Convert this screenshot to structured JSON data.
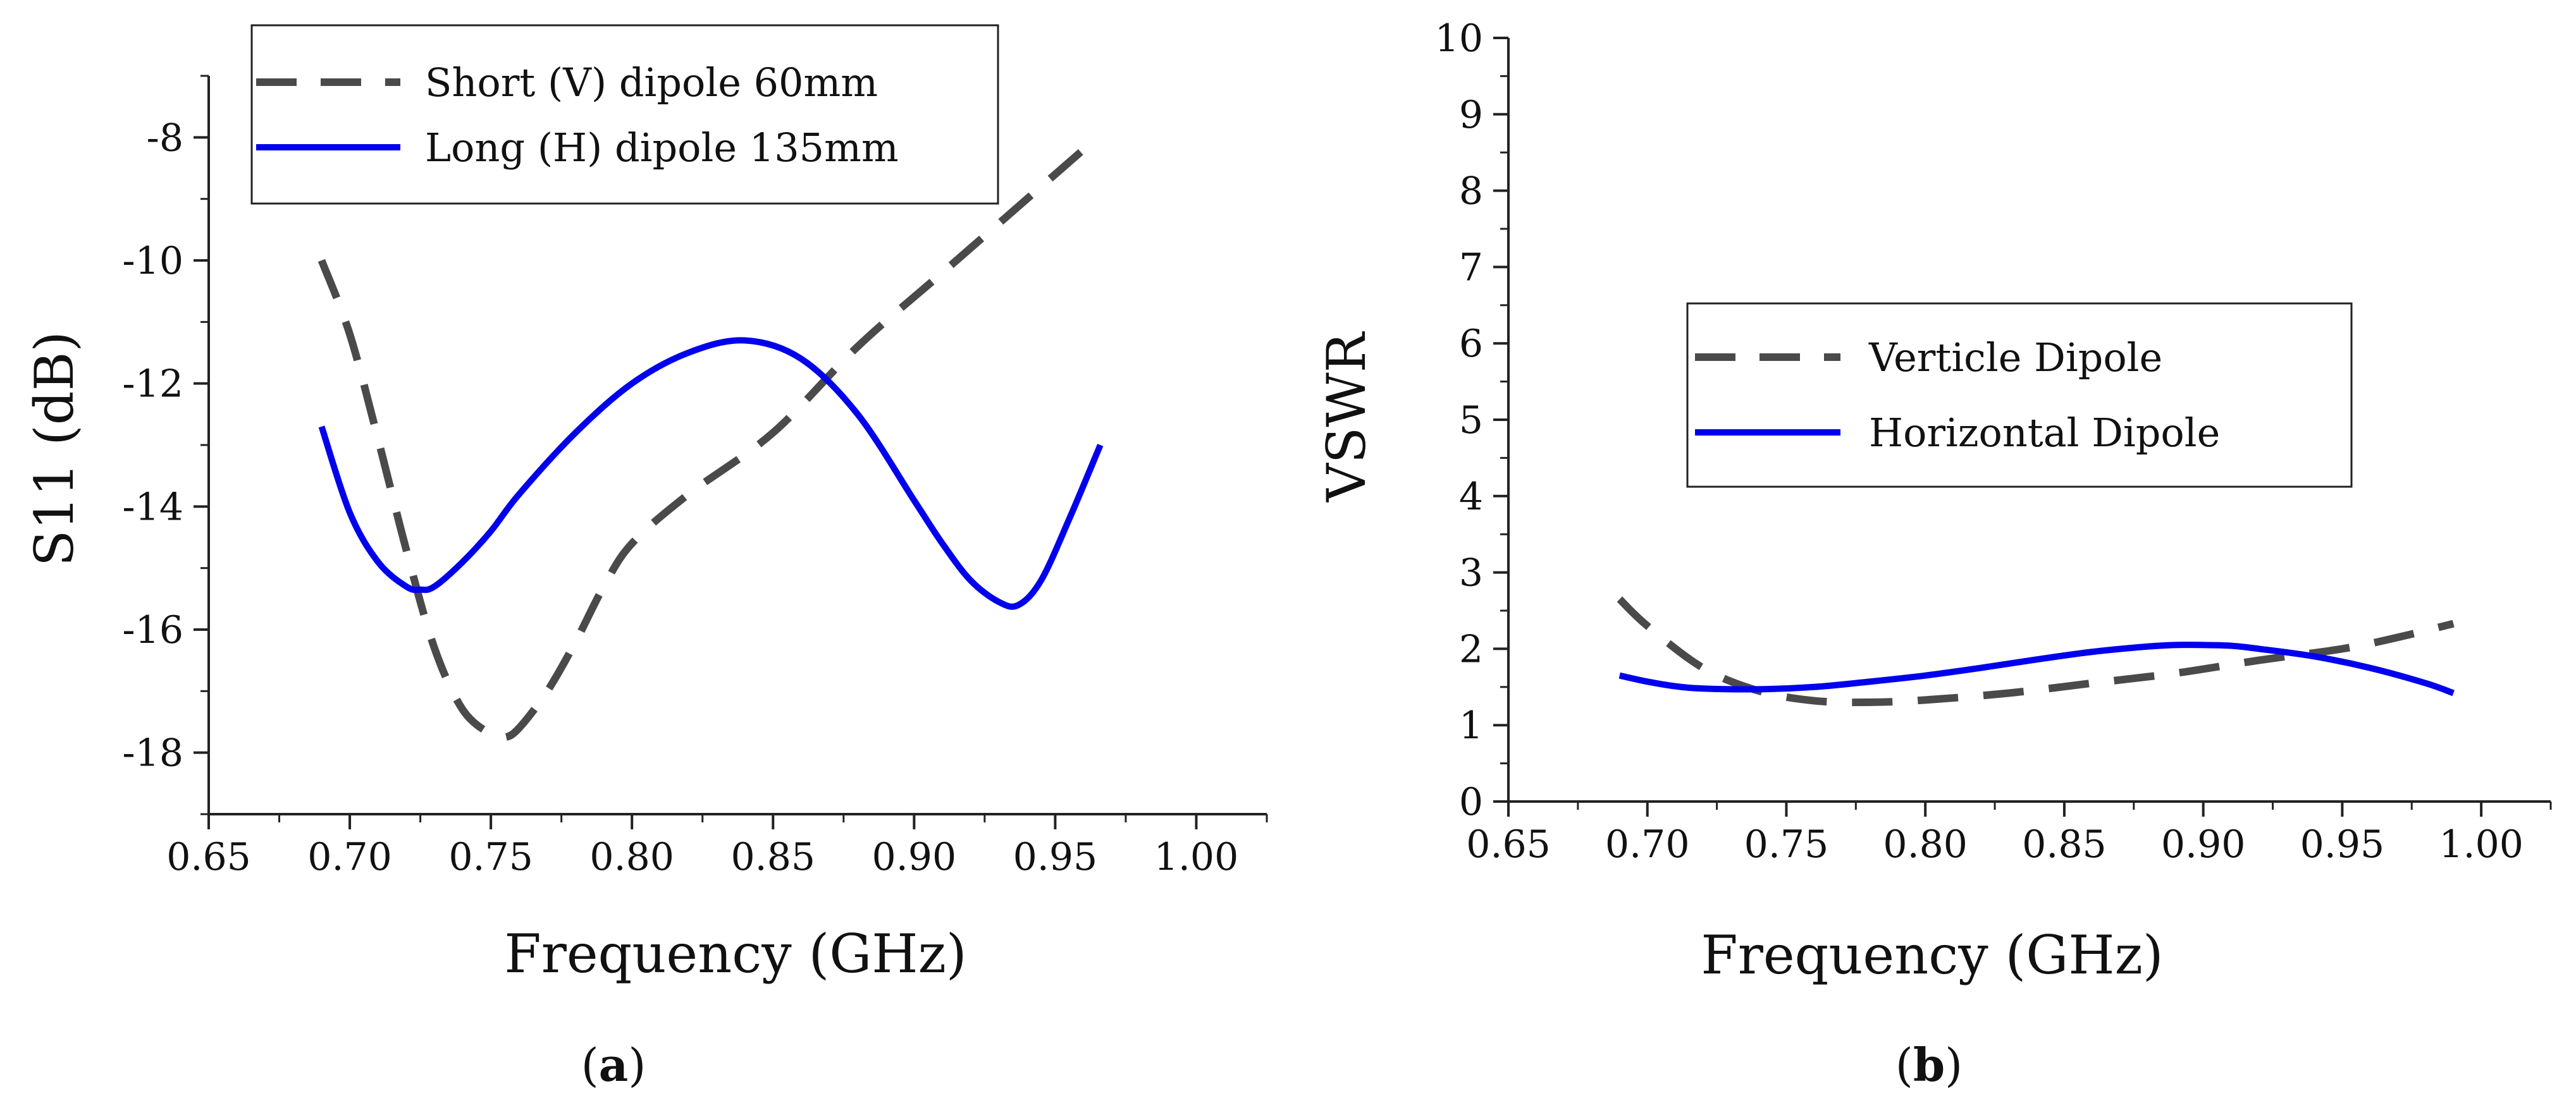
{
  "chart_data": [
    {
      "id": "a",
      "type": "line",
      "caption_label": "a",
      "xlabel": "Frequency (GHz)",
      "ylabel": "S11 (dB)",
      "xlim": [
        0.65,
        1.025
      ],
      "ylim": [
        -19,
        -7
      ],
      "x_ticks": [
        0.65,
        0.7,
        0.75,
        0.8,
        0.85,
        0.9,
        0.95,
        1.0
      ],
      "x_tick_labels": [
        "0.65",
        "0.70",
        "0.75",
        "0.80",
        "0.85",
        "0.90",
        "0.95",
        "1.00"
      ],
      "y_ticks": [
        -18,
        -16,
        -14,
        -12,
        -10,
        -8
      ],
      "y_tick_labels": [
        "-18",
        "-16",
        "-14",
        "-12",
        "-10",
        "-8"
      ],
      "grid": false,
      "legend_position": "top-center",
      "series": [
        {
          "name": "Short (V) dipole 60mm",
          "style": "dashed",
          "color": "#4a4a4a",
          "x": [
            0.69,
            0.7,
            0.71,
            0.72,
            0.73,
            0.74,
            0.75,
            0.755,
            0.76,
            0.77,
            0.78,
            0.79,
            0.8,
            0.82,
            0.85,
            0.88,
            0.91,
            0.94,
            0.965
          ],
          "y": [
            -10.0,
            -11.2,
            -12.9,
            -14.7,
            -16.3,
            -17.3,
            -17.7,
            -17.75,
            -17.6,
            -17.0,
            -16.2,
            -15.3,
            -14.6,
            -13.8,
            -12.8,
            -11.4,
            -10.2,
            -9.0,
            -8.0
          ]
        },
        {
          "name": "Long (H)  dipole 135mm",
          "style": "solid",
          "color": "#0000ee",
          "x": [
            0.69,
            0.7,
            0.71,
            0.72,
            0.725,
            0.73,
            0.74,
            0.75,
            0.76,
            0.78,
            0.8,
            0.82,
            0.84,
            0.86,
            0.88,
            0.9,
            0.91,
            0.92,
            0.93,
            0.937,
            0.945,
            0.955,
            0.966
          ],
          "y": [
            -12.7,
            -14.1,
            -14.9,
            -15.3,
            -15.35,
            -15.3,
            -14.9,
            -14.4,
            -13.8,
            -12.8,
            -12.0,
            -11.5,
            -11.3,
            -11.6,
            -12.5,
            -13.9,
            -14.6,
            -15.2,
            -15.55,
            -15.6,
            -15.2,
            -14.2,
            -13.0
          ]
        }
      ]
    },
    {
      "id": "b",
      "type": "line",
      "caption_label": "b",
      "xlabel": "Frequency (GHz)",
      "ylabel": "VSWR",
      "xlim": [
        0.65,
        1.025
      ],
      "ylim": [
        0,
        10
      ],
      "x_ticks": [
        0.65,
        0.7,
        0.75,
        0.8,
        0.85,
        0.9,
        0.95,
        1.0
      ],
      "x_tick_labels": [
        "0.65",
        "0.70",
        "0.75",
        "0.80",
        "0.85",
        "0.90",
        "0.95",
        "1.00"
      ],
      "y_ticks": [
        0,
        1,
        2,
        3,
        4,
        5,
        6,
        7,
        8,
        9,
        10
      ],
      "y_tick_labels": [
        "0",
        "1",
        "2",
        "3",
        "4",
        "5",
        "6",
        "7",
        "8",
        "9",
        "10"
      ],
      "grid": false,
      "legend_position": "center",
      "series": [
        {
          "name": "Verticle Dipole",
          "style": "dashed",
          "color": "#4a4a4a",
          "x": [
            0.69,
            0.7,
            0.72,
            0.74,
            0.76,
            0.78,
            0.8,
            0.83,
            0.86,
            0.89,
            0.92,
            0.95,
            0.97,
            0.99
          ],
          "y": [
            2.65,
            2.3,
            1.75,
            1.45,
            1.32,
            1.3,
            1.33,
            1.42,
            1.55,
            1.68,
            1.85,
            2.0,
            2.15,
            2.33
          ]
        },
        {
          "name": "Horizontal Dipole",
          "style": "solid",
          "color": "#0000ee",
          "x": [
            0.69,
            0.7,
            0.71,
            0.72,
            0.74,
            0.76,
            0.78,
            0.8,
            0.82,
            0.84,
            0.86,
            0.88,
            0.89,
            0.9,
            0.91,
            0.92,
            0.94,
            0.96,
            0.98,
            0.99
          ],
          "y": [
            1.65,
            1.57,
            1.51,
            1.48,
            1.47,
            1.5,
            1.57,
            1.65,
            1.75,
            1.86,
            1.96,
            2.03,
            2.05,
            2.05,
            2.04,
            2.0,
            1.9,
            1.75,
            1.55,
            1.42
          ]
        }
      ]
    }
  ]
}
